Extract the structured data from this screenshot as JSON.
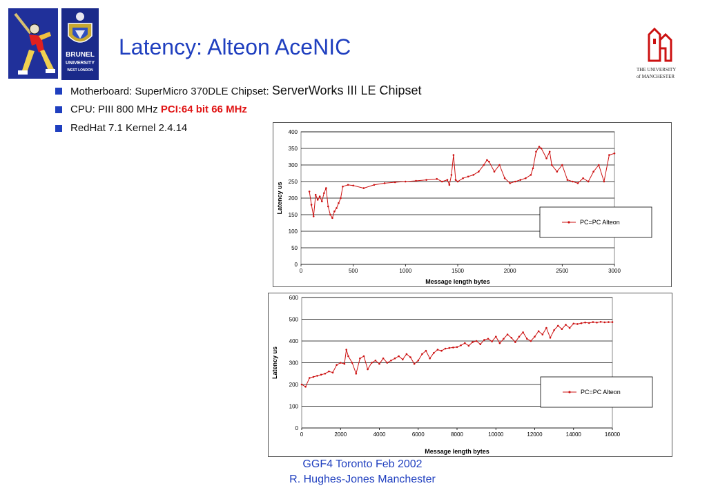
{
  "slide": {
    "title": "Latency: Alteon AceNIC",
    "bullets": [
      {
        "prefix": "Motherboard: SuperMicro 370DLE  Chipset: ",
        "emph": "ServerWorks III LE Chipset"
      },
      {
        "prefix": "CPU: PIII 800 MHz ",
        "emph": "PCI:64 bit 66 MHz"
      },
      {
        "prefix": "RedHat 7.1 Kernel 2.4.14",
        "emph": ""
      }
    ],
    "footer": {
      "line1": "GGF4 Toronto Feb 2002",
      "line2": "R. Hughes-Jones  Manchester"
    },
    "logos": {
      "brunel": {
        "lines": [
          "BRUNEL",
          "UNIVERSITY",
          "WEST LONDON"
        ]
      },
      "manchester": {
        "lines": [
          "THE UNIVERSITY",
          "of MANCHESTER"
        ]
      }
    },
    "colors": {
      "title": "#1f3fbf",
      "highlight": "#e01414",
      "series": "#cc1111",
      "panel": "#ffffff"
    }
  },
  "chart_data": [
    {
      "type": "line",
      "title": "",
      "xlabel": "Message length bytes",
      "ylabel": "Latency us",
      "xlim": [
        0,
        3000
      ],
      "ylim": [
        0,
        400
      ],
      "xticks": [
        "0",
        "500",
        "1000",
        "1500",
        "2000",
        "2500",
        "3000"
      ],
      "yticks": [
        "0",
        "50",
        "100",
        "150",
        "200",
        "250",
        "300",
        "350",
        "400"
      ],
      "grid": true,
      "legend": "right",
      "series": [
        {
          "name": "PC=PC Alteon",
          "x": [
            80,
            100,
            120,
            140,
            160,
            180,
            200,
            220,
            240,
            260,
            280,
            300,
            320,
            340,
            360,
            380,
            400,
            450,
            500,
            600,
            700,
            800,
            900,
            1000,
            1100,
            1200,
            1300,
            1350,
            1400,
            1420,
            1440,
            1460,
            1480,
            1500,
            1550,
            1600,
            1650,
            1700,
            1750,
            1780,
            1800,
            1850,
            1900,
            1950,
            2000,
            2050,
            2100,
            2150,
            2200,
            2220,
            2250,
            2280,
            2300,
            2350,
            2380,
            2400,
            2450,
            2500,
            2550,
            2600,
            2650,
            2700,
            2750,
            2800,
            2850,
            2900,
            2950,
            3000
          ],
          "y": [
            220,
            180,
            145,
            210,
            195,
            205,
            190,
            215,
            230,
            175,
            150,
            140,
            160,
            170,
            185,
            200,
            235,
            240,
            238,
            230,
            240,
            245,
            248,
            250,
            252,
            255,
            258,
            250,
            255,
            240,
            270,
            330,
            255,
            250,
            260,
            265,
            270,
            280,
            300,
            315,
            310,
            280,
            300,
            260,
            245,
            250,
            255,
            260,
            270,
            290,
            340,
            355,
            350,
            320,
            340,
            300,
            280,
            300,
            255,
            250,
            245,
            260,
            250,
            280,
            300,
            250,
            330,
            335
          ]
        }
      ]
    },
    {
      "type": "line",
      "title": "",
      "xlabel": "Message length bytes",
      "ylabel": "Latency us",
      "xlim": [
        0,
        16000
      ],
      "ylim": [
        0,
        600
      ],
      "xticks": [
        "0",
        "2000",
        "4000",
        "6000",
        "8000",
        "10000",
        "12000",
        "14000",
        "16000"
      ],
      "yticks": [
        "0",
        "100",
        "200",
        "300",
        "400",
        "500",
        "600"
      ],
      "grid": true,
      "legend": "right",
      "series": [
        {
          "name": "PC=PC Alteon",
          "x": [
            0,
            200,
            400,
            600,
            800,
            1000,
            1200,
            1400,
            1600,
            1800,
            2000,
            2200,
            2300,
            2400,
            2600,
            2800,
            3000,
            3200,
            3400,
            3600,
            3800,
            4000,
            4200,
            4400,
            4600,
            4800,
            5000,
            5200,
            5400,
            5600,
            5800,
            6000,
            6200,
            6400,
            6600,
            6800,
            7000,
            7200,
            7400,
            7600,
            7800,
            8000,
            8200,
            8400,
            8600,
            8800,
            9000,
            9200,
            9400,
            9600,
            9800,
            10000,
            10200,
            10400,
            10600,
            10800,
            11000,
            11200,
            11400,
            11600,
            11800,
            12000,
            12200,
            12400,
            12600,
            12800,
            13000,
            13200,
            13400,
            13600,
            13800,
            14000,
            14200,
            14400,
            14600,
            14800,
            15000,
            15200,
            15400,
            15600,
            15800,
            16000
          ],
          "y": [
            200,
            190,
            230,
            235,
            240,
            245,
            250,
            260,
            255,
            290,
            300,
            295,
            360,
            330,
            300,
            250,
            320,
            330,
            270,
            300,
            310,
            295,
            320,
            300,
            310,
            320,
            330,
            315,
            340,
            325,
            295,
            310,
            340,
            355,
            320,
            345,
            360,
            355,
            365,
            368,
            370,
            372,
            380,
            390,
            378,
            395,
            400,
            385,
            405,
            410,
            398,
            420,
            390,
            410,
            430,
            415,
            395,
            420,
            440,
            410,
            400,
            420,
            445,
            430,
            460,
            415,
            450,
            470,
            455,
            475,
            460,
            480,
            478,
            482,
            485,
            483,
            487,
            485,
            488,
            486,
            487,
            487
          ]
        }
      ]
    }
  ]
}
